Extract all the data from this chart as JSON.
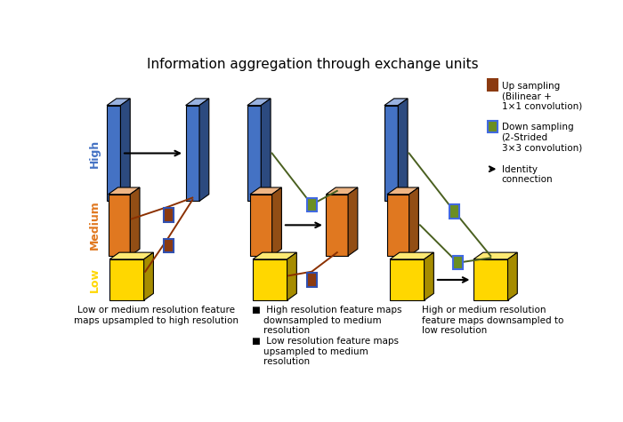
{
  "title": "Information aggregation through exchange units",
  "title_fontsize": 11,
  "background": "#ffffff",
  "colors": {
    "high": "#4472C4",
    "medium": "#E07820",
    "low": "#FFD700",
    "upsampling_fill": "#8B3A10",
    "upsampling_border": "#3050B0",
    "downsampling_fill": "#6B8E23",
    "downsampling_border": "#4169E1",
    "line_up": "#8B3000",
    "line_down": "#4A6020"
  },
  "labels": {
    "high": "High",
    "medium": "Medium",
    "low": "Low"
  }
}
